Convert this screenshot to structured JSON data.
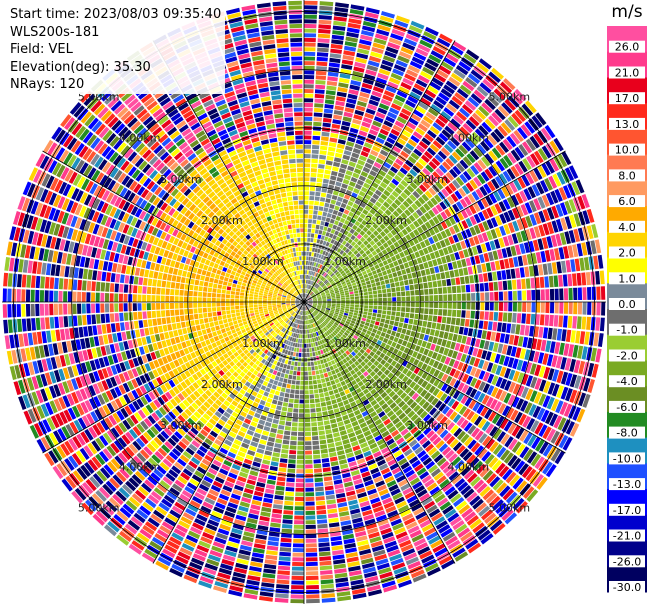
{
  "header": {
    "start_time": "Start time: 2023/08/03 09:35:40",
    "instrument": "WLS200s-181",
    "field": "Field: VEL",
    "elevation": "Elevation(deg): 35.30",
    "nrays": "NRays: 120"
  },
  "chart_data": {
    "type": "heatmap",
    "subtype": "polar-ppi",
    "field": "VEL",
    "colorbar": {
      "unit": "m/s",
      "tick_labels": [
        "26.0",
        "21.0",
        "17.0",
        "13.0",
        "10.0",
        "8.0",
        "6.0",
        "4.0",
        "2.0",
        "1.0",
        "0.0",
        "-1.0",
        "-2.0",
        "-4.0",
        "-6.0",
        "-8.0",
        "-10.0",
        "-13.0",
        "-17.0",
        "-21.0",
        "-26.0",
        "-30.0"
      ],
      "bins": [
        {
          "range": [
            26,
            30
          ],
          "color": "#ff4fa0"
        },
        {
          "range": [
            21,
            26
          ],
          "color": "#ff3a8c"
        },
        {
          "range": [
            17,
            21
          ],
          "color": "#e8001c"
        },
        {
          "range": [
            13,
            17
          ],
          "color": "#ff2a1c"
        },
        {
          "range": [
            10,
            13
          ],
          "color": "#ff5530"
        },
        {
          "range": [
            8,
            10
          ],
          "color": "#ff7a52"
        },
        {
          "range": [
            6,
            8
          ],
          "color": "#ff9a60"
        },
        {
          "range": [
            4,
            6
          ],
          "color": "#ffaa00"
        },
        {
          "range": [
            2,
            4
          ],
          "color": "#ffd400"
        },
        {
          "range": [
            1,
            2
          ],
          "color": "#ffff00"
        },
        {
          "range": [
            0,
            1
          ],
          "color": "#7a8a9a"
        },
        {
          "range": [
            -1,
            0
          ],
          "color": "#6e6e6e"
        },
        {
          "range": [
            -2,
            -1
          ],
          "color": "#9acd32"
        },
        {
          "range": [
            -4,
            -2
          ],
          "color": "#7aaa22"
        },
        {
          "range": [
            -6,
            -4
          ],
          "color": "#6b8e23"
        },
        {
          "range": [
            -8,
            -6
          ],
          "color": "#228b22"
        },
        {
          "range": [
            -10,
            -8
          ],
          "color": "#1e90c0"
        },
        {
          "range": [
            -13,
            -10
          ],
          "color": "#1e50ff"
        },
        {
          "range": [
            -17,
            -13
          ],
          "color": "#0000ff"
        },
        {
          "range": [
            -21,
            -17
          ],
          "color": "#0000cd"
        },
        {
          "range": [
            -26,
            -21
          ],
          "color": "#00008b"
        },
        {
          "range": [
            -30,
            -26
          ],
          "color": "#000060"
        }
      ]
    },
    "range_rings": [
      {
        "range_km": 1.0,
        "label": "1.00km"
      },
      {
        "range_km": 2.0,
        "label": "2.00km"
      },
      {
        "range_km": 3.0,
        "label": "3.00km"
      },
      {
        "range_km": 4.0,
        "label": "4.00km"
      },
      {
        "range_km": 5.0,
        "label": "5.00km"
      }
    ],
    "max_range_km": 5.2,
    "nrays": 120,
    "spokes_deg": [
      0,
      30,
      60,
      90,
      120,
      150,
      180,
      210,
      240,
      270,
      300,
      330
    ],
    "wind_pattern": {
      "dominant_positive_azimuth_deg": 285,
      "dominant_negative_azimuth_deg": 105,
      "valid_range_km": 2.8,
      "noise_beyond_km": 3.0
    }
  }
}
